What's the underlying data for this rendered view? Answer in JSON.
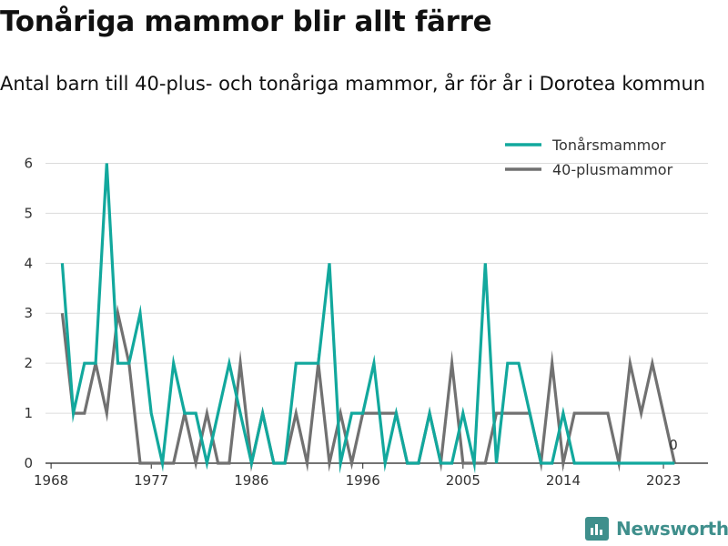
{
  "chart_data": {
    "type": "line",
    "title": "Tonåriga mammor blir allt färre",
    "subtitle": "Antal barn till 40-plus- och tonåriga mammor, år för år i Dorotea kommun",
    "xlabel": "",
    "ylabel": "",
    "x": [
      1969,
      1970,
      1971,
      1972,
      1973,
      1974,
      1975,
      1976,
      1977,
      1978,
      1979,
      1980,
      1981,
      1982,
      1983,
      1984,
      1985,
      1986,
      1987,
      1988,
      1989,
      1990,
      1991,
      1992,
      1993,
      1994,
      1995,
      1996,
      1997,
      1998,
      1999,
      2000,
      2001,
      2002,
      2003,
      2004,
      2005,
      2006,
      2007,
      2008,
      2009,
      2010,
      2011,
      2012,
      2013,
      2014,
      2015,
      2016,
      2017,
      2018,
      2019,
      2020,
      2021,
      2022,
      2023,
      2024
    ],
    "series": [
      {
        "name": "Tonårsmammor",
        "color": "#12a89d",
        "values": [
          4,
          1,
          2,
          2,
          6,
          2,
          2,
          3,
          1,
          0,
          2,
          1,
          1,
          0,
          1,
          2,
          1,
          0,
          1,
          0,
          0,
          2,
          2,
          2,
          4,
          0,
          1,
          1,
          2,
          0,
          1,
          0,
          0,
          1,
          0,
          0,
          1,
          0,
          4,
          0,
          2,
          2,
          1,
          0,
          0,
          1,
          0,
          0,
          0,
          0,
          0,
          0,
          0,
          0,
          0,
          0
        ]
      },
      {
        "name": "40-plusmammor",
        "color": "#717171",
        "values": [
          3,
          1,
          1,
          2,
          1,
          3,
          2,
          0,
          0,
          0,
          0,
          1,
          0,
          1,
          0,
          0,
          2,
          0,
          1,
          0,
          0,
          1,
          0,
          2,
          0,
          1,
          0,
          1,
          1,
          1,
          1,
          0,
          0,
          1,
          0,
          2,
          0,
          0,
          0,
          1,
          1,
          1,
          1,
          0,
          2,
          0,
          1,
          1,
          1,
          1,
          0,
          2,
          1,
          2,
          1,
          0
        ]
      }
    ],
    "x_ticks": [
      "1968",
      "1977",
      "1986",
      "1996",
      "2005",
      "2014",
      "2023"
    ],
    "x_tick_values": [
      1968,
      1977,
      1986,
      1996,
      2005,
      2014,
      2023
    ],
    "y_ticks": [
      "0",
      "1",
      "2",
      "3",
      "4",
      "5",
      "6"
    ],
    "ylim": [
      0,
      6.3
    ],
    "xlim": [
      1967.5,
      2027
    ],
    "grid": true,
    "legend_position": "top-right",
    "end_label": {
      "x": 2024,
      "y": 0,
      "text": "0"
    }
  },
  "branding": {
    "name": "Newsworthy",
    "icon": "newsworthy-logo-icon"
  }
}
